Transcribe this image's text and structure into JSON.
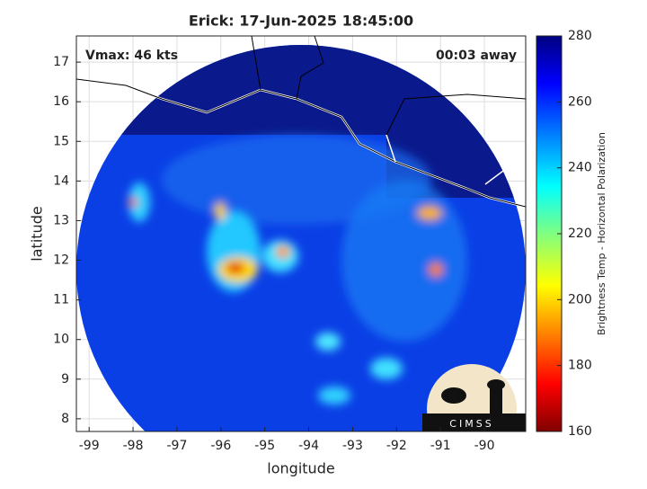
{
  "chart_data": {
    "type": "image",
    "title": "Erick: 17-Jun-2025 18:45:00",
    "x_label": "longitude",
    "y_label": "latitude",
    "annotations": [
      "Vmax: 46 kts",
      "00:03 away"
    ],
    "logo": "CIMSS",
    "xlim": [
      -99.29,
      -89.06
    ],
    "xticks": [
      -99,
      -98,
      -97,
      -96,
      -95,
      -94,
      -93,
      -92,
      -91,
      -90
    ],
    "ylim": [
      7.68,
      17.66
    ],
    "yticks": [
      8,
      9,
      10,
      11,
      12,
      13,
      14,
      15,
      16,
      17
    ],
    "grid": true,
    "colorbar": {
      "label": "Brightness Temp - Horizontal Polarization",
      "lim": [
        160,
        280
      ],
      "ticks": [
        160,
        180,
        200,
        220,
        240,
        260,
        280
      ]
    }
  }
}
